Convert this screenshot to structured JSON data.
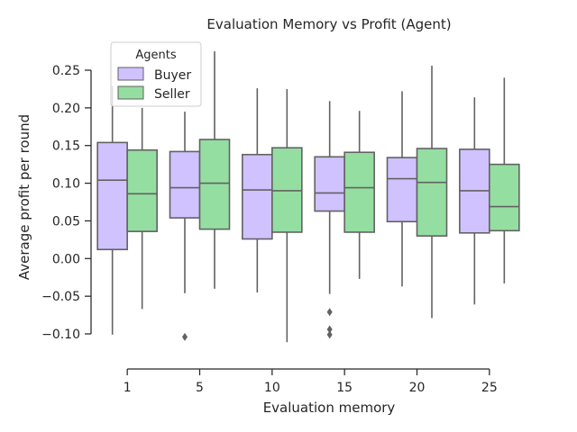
{
  "chart_data": {
    "type": "box",
    "title": "Evaluation Memory vs Profit (Agent)",
    "xlabel": "Evaluation memory",
    "ylabel": "Average profit per round",
    "categories": [
      "1",
      "5",
      "10",
      "15",
      "20",
      "25"
    ],
    "ylim": [
      -0.11,
      0.25
    ],
    "yticks": [
      {
        "value": -0.1,
        "label": "−0.10"
      },
      {
        "value": -0.05,
        "label": "−0.05"
      },
      {
        "value": 0.0,
        "label": "0.00"
      },
      {
        "value": 0.05,
        "label": "0.05"
      },
      {
        "value": 0.1,
        "label": "0.10"
      },
      {
        "value": 0.15,
        "label": "0.15"
      },
      {
        "value": 0.2,
        "label": "0.20"
      },
      {
        "value": 0.25,
        "label": "0.25"
      }
    ],
    "legend": {
      "title": "Agents",
      "position": "top-left"
    },
    "grid": false,
    "series": [
      {
        "name": "Buyer",
        "color": "#d0c2ff",
        "boxes": [
          {
            "whislo": -0.101,
            "q1": 0.012,
            "med": 0.104,
            "q3": 0.154,
            "whishi": 0.229,
            "fliers": []
          },
          {
            "whislo": -0.046,
            "q1": 0.054,
            "med": 0.094,
            "q3": 0.142,
            "whishi": 0.195,
            "fliers": [
              -0.104
            ]
          },
          {
            "whislo": -0.045,
            "q1": 0.026,
            "med": 0.091,
            "q3": 0.138,
            "whishi": 0.226,
            "fliers": []
          },
          {
            "whislo": -0.047,
            "q1": 0.063,
            "med": 0.087,
            "q3": 0.135,
            "whishi": 0.209,
            "fliers": [
              -0.071,
              -0.094,
              -0.101
            ]
          },
          {
            "whislo": -0.037,
            "q1": 0.049,
            "med": 0.106,
            "q3": 0.134,
            "whishi": 0.222,
            "fliers": []
          },
          {
            "whislo": -0.061,
            "q1": 0.034,
            "med": 0.09,
            "q3": 0.145,
            "whishi": 0.214,
            "fliers": []
          }
        ]
      },
      {
        "name": "Seller",
        "color": "#95dea1",
        "boxes": [
          {
            "whislo": -0.067,
            "q1": 0.036,
            "med": 0.086,
            "q3": 0.144,
            "whishi": 0.2,
            "fliers": []
          },
          {
            "whislo": -0.04,
            "q1": 0.039,
            "med": 0.1,
            "q3": 0.158,
            "whishi": 0.275,
            "fliers": []
          },
          {
            "whislo": -0.111,
            "q1": 0.035,
            "med": 0.09,
            "q3": 0.147,
            "whishi": 0.225,
            "fliers": []
          },
          {
            "whislo": -0.027,
            "q1": 0.035,
            "med": 0.094,
            "q3": 0.141,
            "whishi": 0.196,
            "fliers": []
          },
          {
            "whislo": -0.079,
            "q1": 0.03,
            "med": 0.101,
            "q3": 0.146,
            "whishi": 0.256,
            "fliers": []
          },
          {
            "whislo": -0.033,
            "q1": 0.037,
            "med": 0.069,
            "q3": 0.125,
            "whishi": 0.24,
            "fliers": []
          }
        ]
      }
    ]
  }
}
